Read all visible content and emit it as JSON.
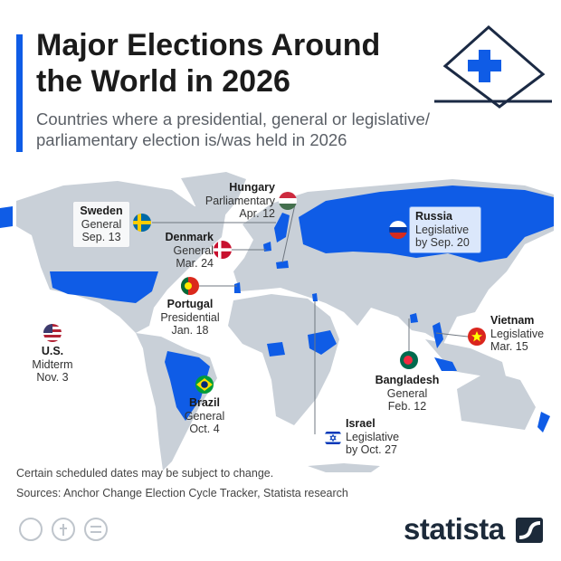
{
  "header": {
    "title": "Major Elections Around the World in 2026",
    "subtitle": "Countries where a presidential, general or legislative/ parliamentary election is/was held in 2026"
  },
  "elections": [
    {
      "country": "Hungary",
      "type": "Parliamentary",
      "date": "Apr. 12"
    },
    {
      "country": "Sweden",
      "type": "General",
      "date": "Sep. 13"
    },
    {
      "country": "Denmark",
      "type": "General",
      "date": "Mar. 24"
    },
    {
      "country": "Russia",
      "type": "Legislative",
      "date": "by Sep. 20"
    },
    {
      "country": "Portugal",
      "type": "Presidential",
      "date": "Jan. 18"
    },
    {
      "country": "U.S.",
      "type": "Midterm",
      "date": "Nov. 3"
    },
    {
      "country": "Vietnam",
      "type": "Legislative",
      "date": "Mar. 15"
    },
    {
      "country": "Brazil",
      "type": "General",
      "date": "Oct. 4"
    },
    {
      "country": "Bangladesh",
      "type": "General",
      "date": "Feb. 12"
    },
    {
      "country": "Israel",
      "type": "Legislative",
      "date": "by Oct. 27"
    }
  ],
  "footer": {
    "note": "Certain scheduled dates may be subject to change.",
    "sources": "Sources: Anchor Change Election Cycle Tracker, Statista research",
    "brand": "statista"
  }
}
